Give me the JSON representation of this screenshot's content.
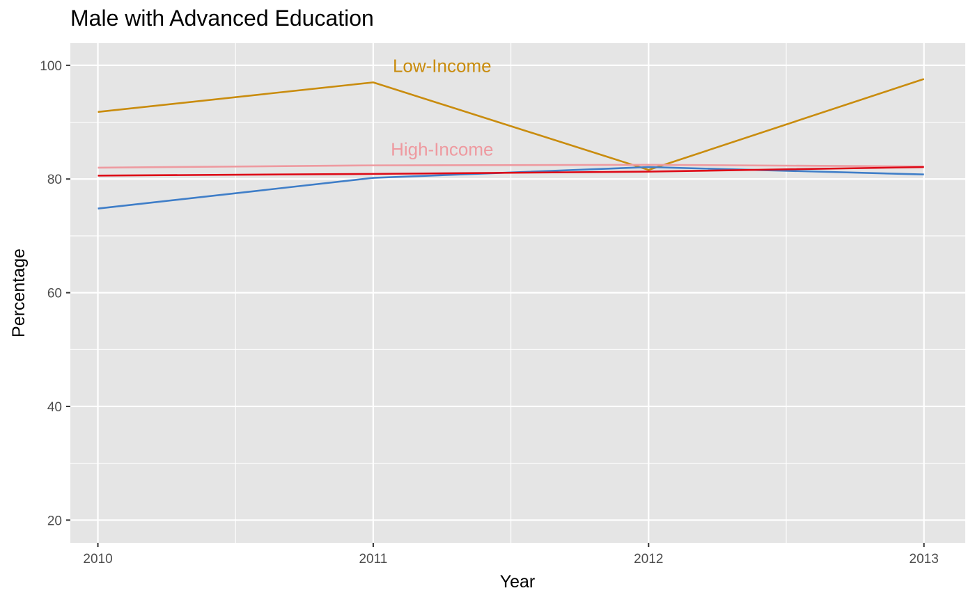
{
  "chart_data": {
    "type": "line",
    "title": "Male with Advanced Education",
    "xlabel": "Year",
    "ylabel": "Percentage",
    "x": [
      2010,
      2011,
      2012,
      2013
    ],
    "xlim": [
      2009.9,
      2013.15
    ],
    "ylim": [
      16.0,
      103.9
    ],
    "y_ticks": [
      20,
      40,
      60,
      80,
      100
    ],
    "y_minor_ticks": [
      30,
      50,
      70,
      90
    ],
    "x_ticks": [
      2010,
      2011,
      2012,
      2013
    ],
    "x_minor_ticks": [
      2010.5,
      2011.5,
      2012.5
    ],
    "grid": true,
    "legend": "none",
    "series": [
      {
        "name": "Low-Income",
        "color": "#C98C0E",
        "values": [
          91.8,
          97.0,
          81.6,
          97.6
        ]
      },
      {
        "name": "High-Income",
        "color": "#EE9AA0",
        "values": [
          82.0,
          82.4,
          82.5,
          82.2
        ]
      },
      {
        "color": "#3F7EC8",
        "values": [
          74.8,
          80.2,
          82.1,
          80.8
        ]
      },
      {
        "color": "#DD0A17",
        "values": [
          80.6,
          80.9,
          81.3,
          82.1
        ]
      }
    ],
    "annotations": [
      {
        "text": "Low-Income",
        "x": 2011.25,
        "y": 99.9,
        "color": "#C98C0E"
      },
      {
        "text": "High-Income",
        "x": 2011.25,
        "y": 85.2,
        "color": "#EE9AA0"
      }
    ]
  }
}
